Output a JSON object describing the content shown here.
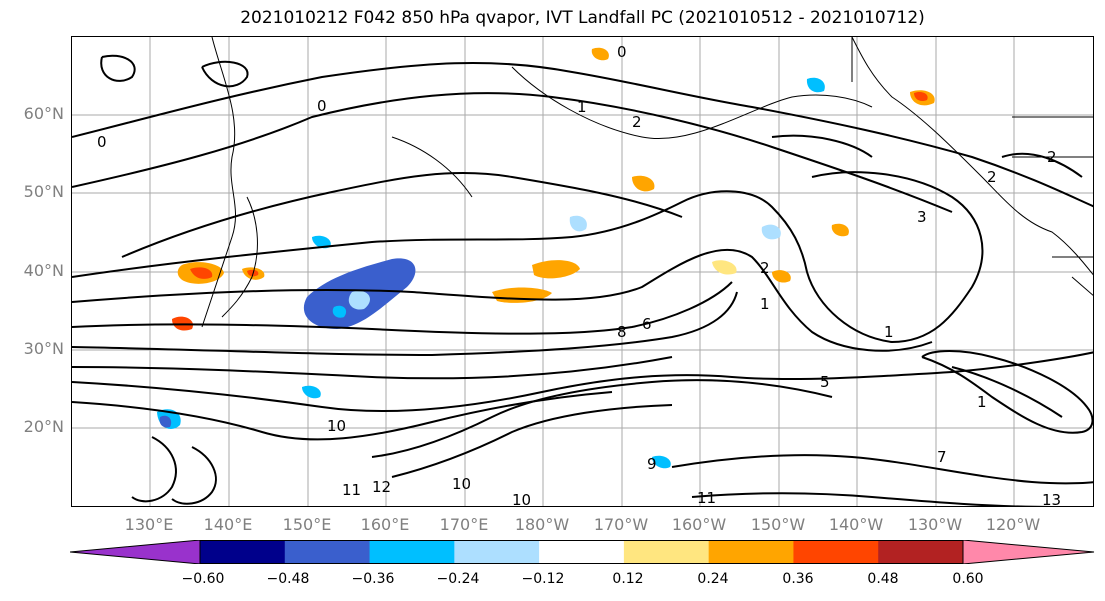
{
  "title": "2021010212 F042 850 hPa qvapor, IVT Landfall PC (2021010512 - 2021010712)",
  "map": {
    "lat_labels": [
      "60°N",
      "50°N",
      "40°N",
      "30°N",
      "20°N"
    ],
    "lon_labels": [
      "130°E",
      "140°E",
      "150°E",
      "160°E",
      "170°E",
      "180°W",
      "170°W",
      "160°W",
      "150°W",
      "140°W",
      "130°W",
      "120°W"
    ],
    "contour_labels": [
      "0",
      "0",
      "0",
      "1",
      "2",
      "2",
      "2",
      "3",
      "2",
      "1",
      "1",
      "1",
      "10",
      "10",
      "10",
      "11",
      "11",
      "12",
      "13",
      "8",
      "9",
      "7",
      "5",
      "6"
    ]
  },
  "colorbar": {
    "ticks": [
      "−0.60",
      "−0.48",
      "−0.36",
      "−0.24",
      "−0.12",
      "0.12",
      "0.24",
      "0.36",
      "0.48",
      "0.60"
    ],
    "colors": [
      "#9932CC",
      "#00008B",
      "#3A5FCD",
      "#00BFFF",
      "#ADDFFF",
      "#FFFFFF",
      "#FFE680",
      "#FFA500",
      "#FF4500",
      "#B22222",
      "#FF88AA"
    ]
  }
}
